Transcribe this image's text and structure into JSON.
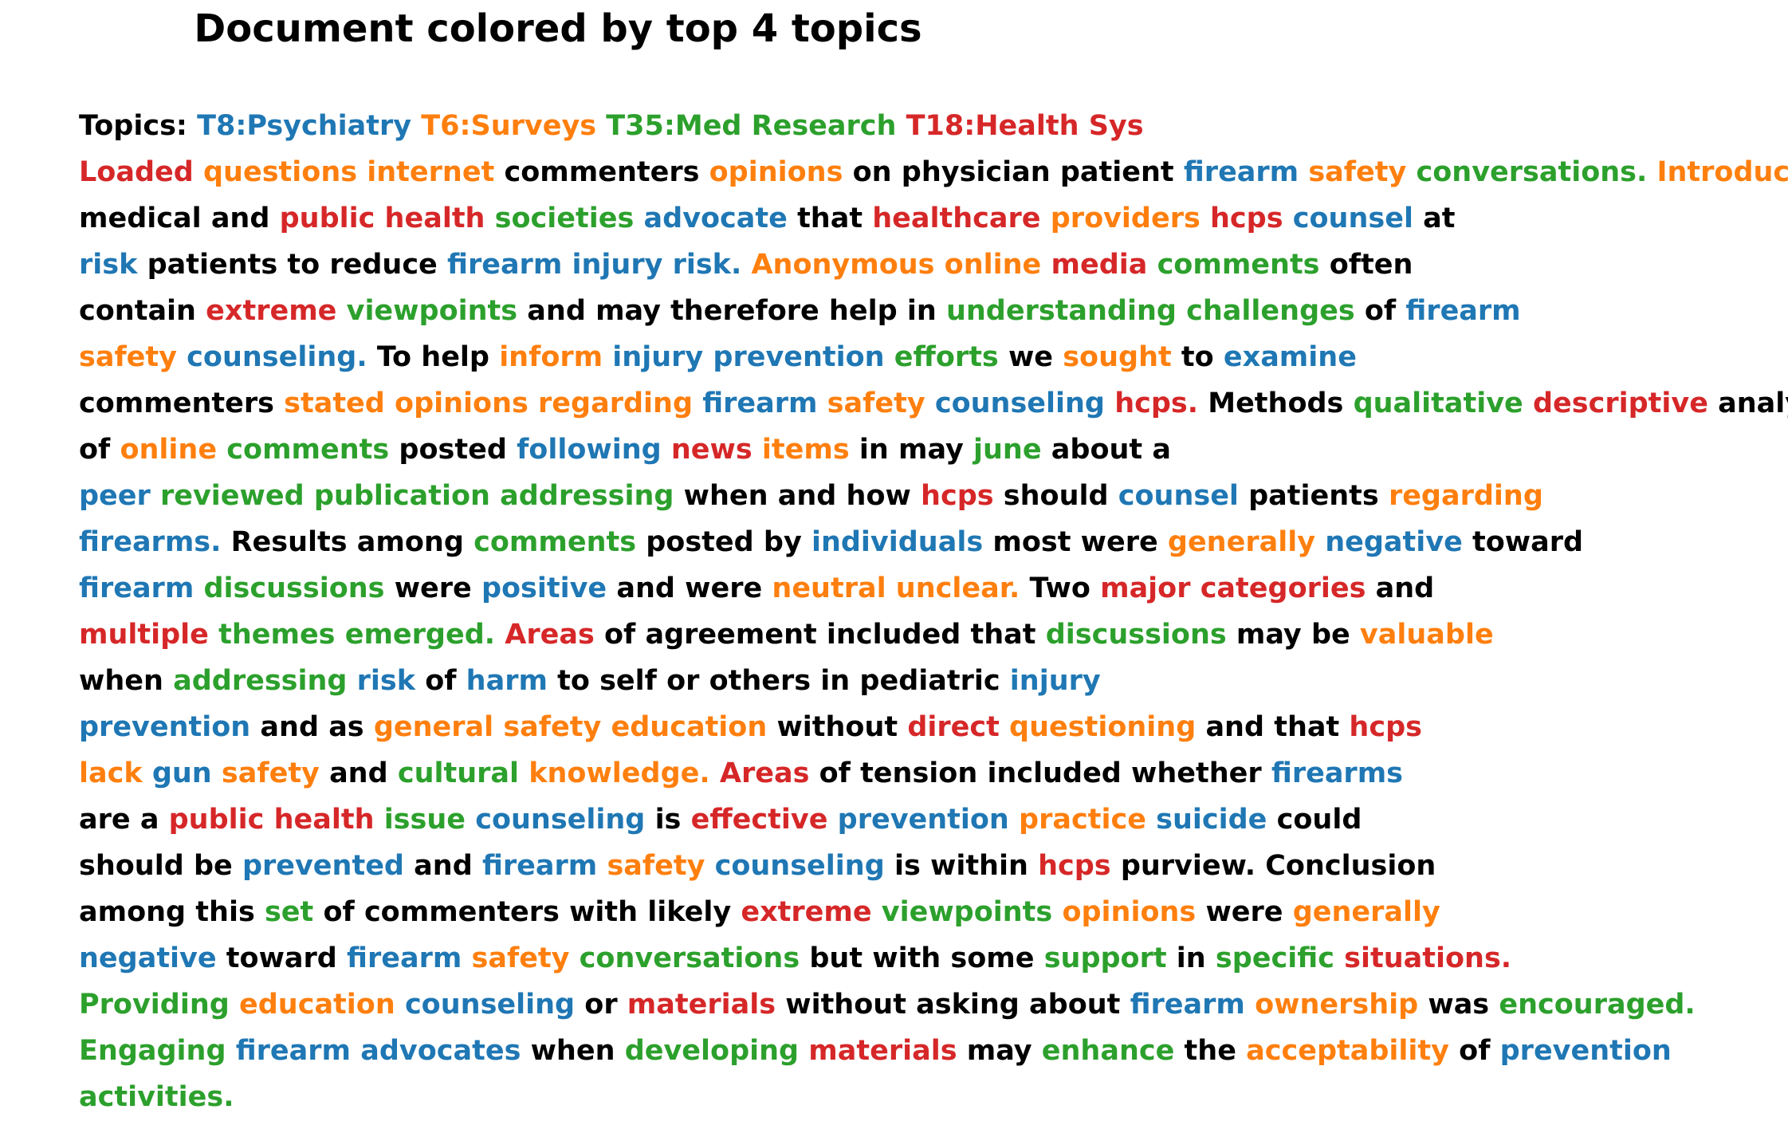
{
  "title": "Document colored by top 4 topics",
  "colors": {
    "T8": "#1f77b4",
    "T6": "#ff7f0e",
    "T35": "#2ca02c",
    "T18": "#d62728",
    "none": "#000000"
  },
  "topics_label": "Topics:",
  "topics": [
    {
      "id": "T8",
      "label": "T8:Psychiatry"
    },
    {
      "id": "T6",
      "label": "T6:Surveys"
    },
    {
      "id": "T35",
      "label": "T35:Med Research"
    },
    {
      "id": "T18",
      "label": "T18:Health Sys"
    }
  ],
  "lines": [
    [
      [
        "Loaded",
        "T18"
      ],
      [
        "questions",
        "T6"
      ],
      [
        "internet",
        "T6"
      ],
      [
        "commenters",
        ""
      ],
      [
        "opinions",
        "T6"
      ],
      [
        "on",
        ""
      ],
      [
        "physician",
        ""
      ],
      [
        "patient",
        ""
      ],
      [
        "firearm",
        "T8"
      ],
      [
        "safety",
        "T6"
      ],
      [
        "conversations.",
        "T35"
      ],
      [
        "Introduction",
        "T6"
      ]
    ],
    [
      [
        "medical",
        ""
      ],
      [
        "and",
        ""
      ],
      [
        "public",
        "T18"
      ],
      [
        "health",
        "T18"
      ],
      [
        "societies",
        "T35"
      ],
      [
        "advocate",
        "T8"
      ],
      [
        "that",
        ""
      ],
      [
        "healthcare",
        "T18"
      ],
      [
        "providers",
        "T6"
      ],
      [
        "hcps",
        "T18"
      ],
      [
        "counsel",
        "T8"
      ],
      [
        "at",
        ""
      ]
    ],
    [
      [
        "risk",
        "T8"
      ],
      [
        "patients",
        ""
      ],
      [
        "to",
        ""
      ],
      [
        "reduce",
        ""
      ],
      [
        "firearm",
        "T8"
      ],
      [
        "injury",
        "T8"
      ],
      [
        "risk.",
        "T8"
      ],
      [
        "Anonymous",
        "T6"
      ],
      [
        "online",
        "T6"
      ],
      [
        "media",
        "T18"
      ],
      [
        "comments",
        "T35"
      ],
      [
        "often",
        ""
      ]
    ],
    [
      [
        "contain",
        ""
      ],
      [
        "extreme",
        "T18"
      ],
      [
        "viewpoints",
        "T35"
      ],
      [
        "and",
        ""
      ],
      [
        "may",
        ""
      ],
      [
        "therefore",
        ""
      ],
      [
        "help",
        ""
      ],
      [
        "in",
        ""
      ],
      [
        "understanding",
        "T35"
      ],
      [
        "challenges",
        "T35"
      ],
      [
        "of",
        ""
      ],
      [
        "firearm",
        "T8"
      ]
    ],
    [
      [
        "safety",
        "T6"
      ],
      [
        "counseling.",
        "T8"
      ],
      [
        "To",
        ""
      ],
      [
        "help",
        ""
      ],
      [
        "inform",
        "T6"
      ],
      [
        "injury",
        "T8"
      ],
      [
        "prevention",
        "T8"
      ],
      [
        "efforts",
        "T35"
      ],
      [
        "we",
        ""
      ],
      [
        "sought",
        "T6"
      ],
      [
        "to",
        ""
      ],
      [
        "examine",
        "T8"
      ]
    ],
    [
      [
        "commenters",
        ""
      ],
      [
        "stated",
        "T6"
      ],
      [
        "opinions",
        "T6"
      ],
      [
        "regarding",
        "T6"
      ],
      [
        "firearm",
        "T8"
      ],
      [
        "safety",
        "T6"
      ],
      [
        "counseling",
        "T8"
      ],
      [
        "hcps.",
        "T18"
      ],
      [
        "Methods",
        ""
      ],
      [
        "qualitative",
        "T35"
      ],
      [
        "descriptive",
        "T18"
      ],
      [
        "analysis",
        ""
      ]
    ],
    [
      [
        "of",
        ""
      ],
      [
        "online",
        "T6"
      ],
      [
        "comments",
        "T35"
      ],
      [
        "posted",
        ""
      ],
      [
        "following",
        "T8"
      ],
      [
        "news",
        "T18"
      ],
      [
        "items",
        "T6"
      ],
      [
        "in",
        ""
      ],
      [
        "may",
        ""
      ],
      [
        "june",
        "T35"
      ],
      [
        "about",
        ""
      ],
      [
        "a",
        ""
      ]
    ],
    [
      [
        "peer",
        "T8"
      ],
      [
        "reviewed",
        "T35"
      ],
      [
        "publication",
        "T35"
      ],
      [
        "addressing",
        "T35"
      ],
      [
        "when",
        ""
      ],
      [
        "and",
        ""
      ],
      [
        "how",
        ""
      ],
      [
        "hcps",
        "T18"
      ],
      [
        "should",
        ""
      ],
      [
        "counsel",
        "T8"
      ],
      [
        "patients",
        ""
      ],
      [
        "regarding",
        "T6"
      ]
    ],
    [
      [
        "firearms.",
        "T8"
      ],
      [
        "Results",
        ""
      ],
      [
        "among",
        ""
      ],
      [
        "comments",
        "T35"
      ],
      [
        "posted",
        ""
      ],
      [
        "by",
        ""
      ],
      [
        "individuals",
        "T8"
      ],
      [
        "most",
        ""
      ],
      [
        "were",
        ""
      ],
      [
        "generally",
        "T6"
      ],
      [
        "negative",
        "T8"
      ],
      [
        "toward",
        ""
      ]
    ],
    [
      [
        "firearm",
        "T8"
      ],
      [
        "discussions",
        "T35"
      ],
      [
        "were",
        ""
      ],
      [
        "positive",
        "T8"
      ],
      [
        "and",
        ""
      ],
      [
        "were",
        ""
      ],
      [
        "neutral",
        "T6"
      ],
      [
        "unclear.",
        "T6"
      ],
      [
        "Two",
        ""
      ],
      [
        "major",
        "T18"
      ],
      [
        "categories",
        "T18"
      ],
      [
        "and",
        ""
      ]
    ],
    [
      [
        "multiple",
        "T18"
      ],
      [
        "themes",
        "T35"
      ],
      [
        "emerged.",
        "T35"
      ],
      [
        "Areas",
        "T18"
      ],
      [
        "of",
        ""
      ],
      [
        "agreement",
        ""
      ],
      [
        "included",
        ""
      ],
      [
        "that",
        ""
      ],
      [
        "discussions",
        "T35"
      ],
      [
        "may",
        ""
      ],
      [
        "be",
        ""
      ],
      [
        "valuable",
        "T6"
      ]
    ],
    [
      [
        "when",
        ""
      ],
      [
        "addressing",
        "T35"
      ],
      [
        "risk",
        "T8"
      ],
      [
        "of",
        ""
      ],
      [
        "harm",
        "T8"
      ],
      [
        "to",
        ""
      ],
      [
        "self",
        ""
      ],
      [
        "or",
        ""
      ],
      [
        "others",
        ""
      ],
      [
        "in",
        ""
      ],
      [
        "pediatric",
        ""
      ],
      [
        "injury",
        "T8"
      ]
    ],
    [
      [
        "prevention",
        "T8"
      ],
      [
        "and",
        ""
      ],
      [
        "as",
        ""
      ],
      [
        "general",
        "T6"
      ],
      [
        "safety",
        "T6"
      ],
      [
        "education",
        "T6"
      ],
      [
        "without",
        ""
      ],
      [
        "direct",
        "T18"
      ],
      [
        "questioning",
        "T6"
      ],
      [
        "and",
        ""
      ],
      [
        "that",
        ""
      ],
      [
        "hcps",
        "T18"
      ]
    ],
    [
      [
        "lack",
        "T6"
      ],
      [
        "gun",
        "T8"
      ],
      [
        "safety",
        "T6"
      ],
      [
        "and",
        ""
      ],
      [
        "cultural",
        "T35"
      ],
      [
        "knowledge.",
        "T6"
      ],
      [
        "Areas",
        "T18"
      ],
      [
        "of",
        ""
      ],
      [
        "tension",
        ""
      ],
      [
        "included",
        ""
      ],
      [
        "whether",
        ""
      ],
      [
        "firearms",
        "T8"
      ]
    ],
    [
      [
        "are",
        ""
      ],
      [
        "a",
        ""
      ],
      [
        "public",
        "T18"
      ],
      [
        "health",
        "T18"
      ],
      [
        "issue",
        "T35"
      ],
      [
        "counseling",
        "T8"
      ],
      [
        "is",
        ""
      ],
      [
        "effective",
        "T18"
      ],
      [
        "prevention",
        "T8"
      ],
      [
        "practice",
        "T6"
      ],
      [
        "suicide",
        "T8"
      ],
      [
        "could",
        ""
      ]
    ],
    [
      [
        "should",
        ""
      ],
      [
        "be",
        ""
      ],
      [
        "prevented",
        "T8"
      ],
      [
        "and",
        ""
      ],
      [
        "firearm",
        "T8"
      ],
      [
        "safety",
        "T6"
      ],
      [
        "counseling",
        "T8"
      ],
      [
        "is",
        ""
      ],
      [
        "within",
        ""
      ],
      [
        "hcps",
        "T18"
      ],
      [
        "purview.",
        ""
      ],
      [
        "Conclusion",
        ""
      ]
    ],
    [
      [
        "among",
        ""
      ],
      [
        "this",
        ""
      ],
      [
        "set",
        "T35"
      ],
      [
        "of",
        ""
      ],
      [
        "commenters",
        ""
      ],
      [
        "with",
        ""
      ],
      [
        "likely",
        ""
      ],
      [
        "extreme",
        "T18"
      ],
      [
        "viewpoints",
        "T35"
      ],
      [
        "opinions",
        "T6"
      ],
      [
        "were",
        ""
      ],
      [
        "generally",
        "T6"
      ]
    ],
    [
      [
        "negative",
        "T8"
      ],
      [
        "toward",
        ""
      ],
      [
        "firearm",
        "T8"
      ],
      [
        "safety",
        "T6"
      ],
      [
        "conversations",
        "T35"
      ],
      [
        "but",
        ""
      ],
      [
        "with",
        ""
      ],
      [
        "some",
        ""
      ],
      [
        "support",
        "T35"
      ],
      [
        "in",
        ""
      ],
      [
        "specific",
        "T35"
      ],
      [
        "situations.",
        "T18"
      ]
    ],
    [
      [
        "Providing",
        "T35"
      ],
      [
        "education",
        "T6"
      ],
      [
        "counseling",
        "T8"
      ],
      [
        "or",
        ""
      ],
      [
        "materials",
        "T18"
      ],
      [
        "without",
        ""
      ],
      [
        "asking",
        ""
      ],
      [
        "about",
        ""
      ],
      [
        "firearm",
        "T8"
      ],
      [
        "ownership",
        "T6"
      ],
      [
        "was",
        ""
      ],
      [
        "encouraged.",
        "T35"
      ]
    ],
    [
      [
        "Engaging",
        "T35"
      ],
      [
        "firearm",
        "T8"
      ],
      [
        "advocates",
        "T8"
      ],
      [
        "when",
        ""
      ],
      [
        "developing",
        "T35"
      ],
      [
        "materials",
        "T18"
      ],
      [
        "may",
        ""
      ],
      [
        "enhance",
        "T35"
      ],
      [
        "the",
        ""
      ],
      [
        "acceptability",
        "T6"
      ],
      [
        "of",
        ""
      ],
      [
        "prevention",
        "T8"
      ]
    ],
    [
      [
        "activities.",
        "T35"
      ]
    ]
  ]
}
